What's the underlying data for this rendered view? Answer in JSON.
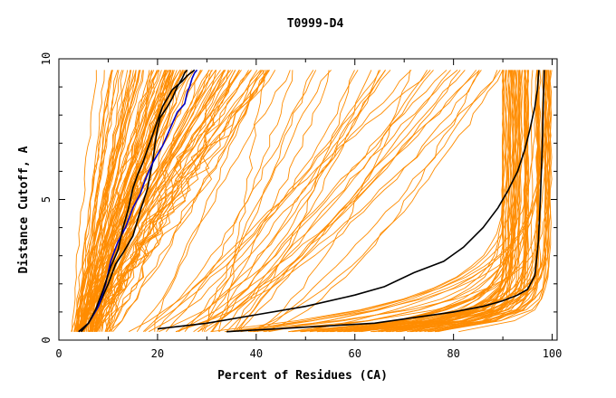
{
  "chart_data": {
    "type": "line",
    "title": "T0999-D4",
    "xlabel": "Percent of Residues (CA)",
    "ylabel": "Distance Cutoff, A",
    "xlim": [
      0,
      101
    ],
    "ylim": [
      0,
      10
    ],
    "x_ticks": [
      0,
      20,
      40,
      60,
      80,
      100
    ],
    "y_ticks": [
      0,
      5,
      10
    ],
    "grid": false,
    "legend": "none",
    "colors": {
      "bundle": "#ff8c00",
      "highlight_black": "#000000",
      "highlight_blue": "#0000c8",
      "axis": "#000000"
    },
    "highlighted_series": [
      {
        "color": "black",
        "x": [
          4.5,
          6,
          8,
          10,
          11.5,
          13,
          15,
          16.5,
          18,
          18.5,
          19,
          19.5,
          20,
          20.5,
          22,
          23,
          24,
          25,
          25.5,
          26
        ],
        "y": [
          0.3,
          0.6,
          1.2,
          2.0,
          2.7,
          3.1,
          3.7,
          4.6,
          5.4,
          5.9,
          6.3,
          7.0,
          7.5,
          7.9,
          8.3,
          8.6,
          9.0,
          9.3,
          9.5,
          9.6
        ]
      },
      {
        "color": "blue",
        "x": [
          4,
          6,
          8,
          9.5,
          10.5,
          12,
          13.5,
          15,
          16.5,
          17.5,
          19,
          21,
          22.5,
          24,
          25.5,
          26,
          26.5,
          27,
          27.5,
          28
        ],
        "y": [
          0.3,
          0.6,
          1.2,
          2.0,
          2.8,
          3.5,
          4.0,
          4.7,
          5.2,
          5.7,
          6.3,
          6.9,
          7.5,
          8.1,
          8.4,
          8.8,
          9.0,
          9.3,
          9.5,
          9.6
        ]
      },
      {
        "color": "black",
        "x": [
          4,
          6,
          7.5,
          9,
          10.5,
          12,
          13,
          14,
          14.5,
          15,
          16,
          17,
          18,
          19,
          20,
          21,
          22,
          23,
          25,
          26,
          27.5
        ],
        "y": [
          0.3,
          0.6,
          1.1,
          1.8,
          2.6,
          3.2,
          4.0,
          4.6,
          5.0,
          5.4,
          5.9,
          6.3,
          6.8,
          7.3,
          7.8,
          8.3,
          8.6,
          8.9,
          9.2,
          9.4,
          9.6
        ]
      },
      {
        "color": "black",
        "x": [
          20,
          30,
          40,
          50,
          60,
          66,
          72,
          78,
          82,
          86,
          89,
          91,
          93,
          94.5,
          95.5,
          96.5,
          97,
          97.3
        ],
        "y": [
          0.4,
          0.6,
          0.9,
          1.2,
          1.6,
          1.9,
          2.4,
          2.8,
          3.3,
          4.0,
          4.7,
          5.3,
          6.0,
          6.8,
          7.5,
          8.3,
          8.9,
          9.6
        ]
      },
      {
        "color": "black",
        "x": [
          34,
          44,
          54,
          64,
          72,
          80,
          86,
          90,
          93,
          95,
          96.5,
          97.2,
          97.6,
          98,
          98.2,
          98.4
        ],
        "y": [
          0.3,
          0.4,
          0.5,
          0.6,
          0.8,
          1.0,
          1.2,
          1.4,
          1.6,
          1.8,
          2.3,
          3.5,
          5.0,
          7.0,
          8.5,
          9.6
        ]
      }
    ]
  }
}
